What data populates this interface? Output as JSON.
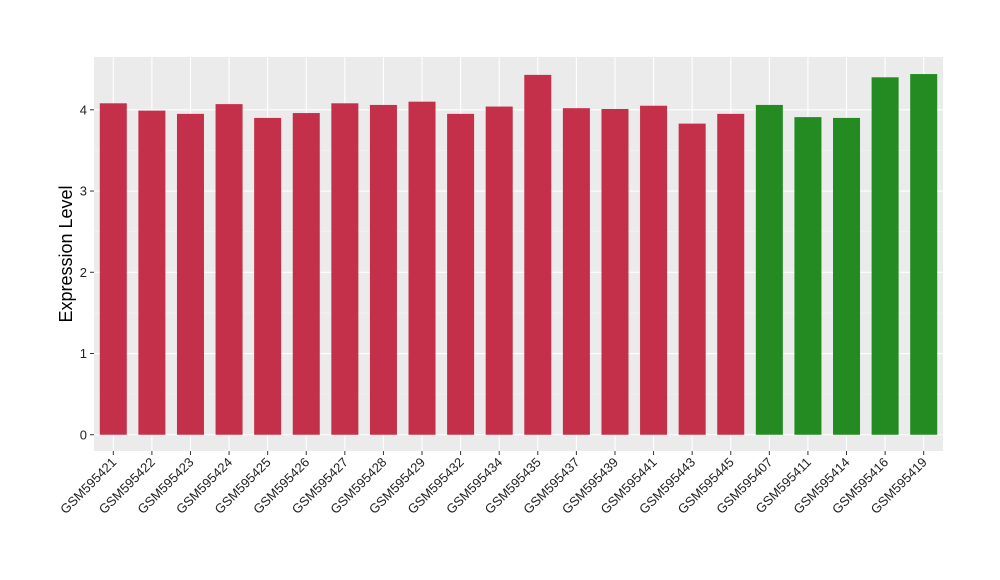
{
  "chart_data": {
    "type": "bar",
    "title": "",
    "xlabel": "",
    "ylabel": "Expression Level",
    "ylim": [
      -0.2,
      4.65
    ],
    "yticks": [
      0,
      1,
      2,
      3,
      4
    ],
    "grid": true,
    "legend": "none",
    "colors": {
      "panel_background": "#ebebeb",
      "grid_major": "#ffffff",
      "grid_minor": "#f4f4f4",
      "group_a": "#c4304a",
      "group_b": "#238b22"
    },
    "categories": [
      "GSM595421",
      "GSM595422",
      "GSM595423",
      "GSM595424",
      "GSM595425",
      "GSM595426",
      "GSM595427",
      "GSM595428",
      "GSM595429",
      "GSM595432",
      "GSM595434",
      "GSM595435",
      "GSM595437",
      "GSM595439",
      "GSM595441",
      "GSM595443",
      "GSM595445",
      "GSM595407",
      "GSM595411",
      "GSM595414",
      "GSM595416",
      "GSM595419"
    ],
    "values": [
      4.08,
      3.99,
      3.95,
      4.07,
      3.9,
      3.96,
      4.08,
      4.06,
      4.1,
      3.95,
      4.04,
      4.43,
      4.02,
      4.01,
      4.05,
      3.83,
      3.95,
      4.06,
      3.91,
      3.9,
      4.4,
      4.44
    ],
    "groups": [
      "a",
      "a",
      "a",
      "a",
      "a",
      "a",
      "a",
      "a",
      "a",
      "a",
      "a",
      "a",
      "a",
      "a",
      "a",
      "a",
      "a",
      "b",
      "b",
      "b",
      "b",
      "b"
    ]
  }
}
